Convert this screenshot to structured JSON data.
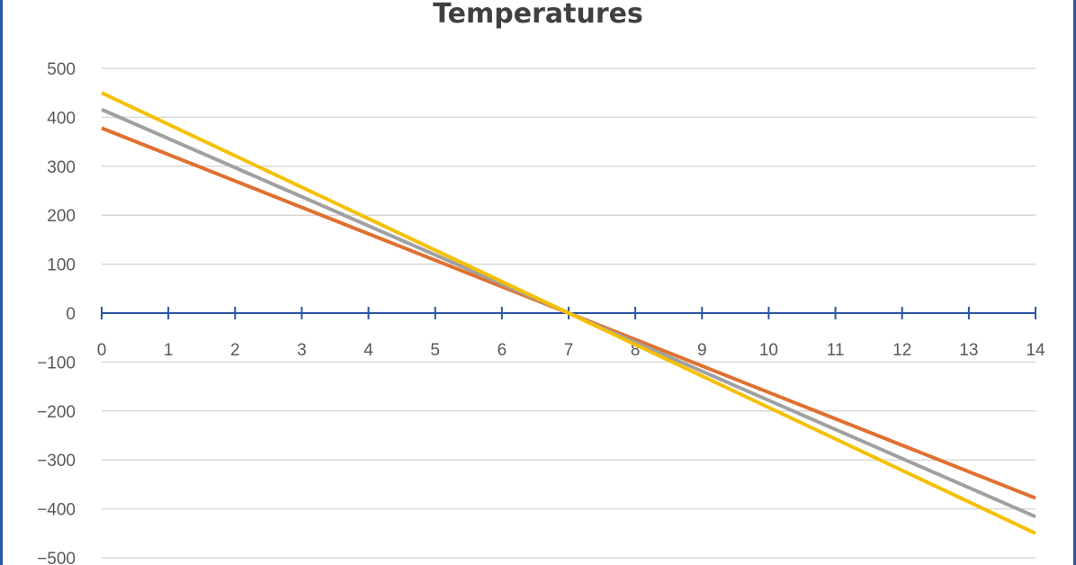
{
  "chart_data": {
    "type": "line",
    "title": "Temperatures",
    "xlabel": "",
    "ylabel": "",
    "x": [
      0,
      14
    ],
    "xlim": [
      0,
      14
    ],
    "ylim": [
      -500,
      500
    ],
    "x_ticks": [
      "0",
      "1",
      "2",
      "3",
      "4",
      "5",
      "6",
      "7",
      "8",
      "9",
      "10",
      "11",
      "12",
      "13",
      "14"
    ],
    "y_ticks": [
      "500",
      "400",
      "300",
      "200",
      "100",
      "0",
      "-100",
      "-200",
      "-300",
      "-400",
      "-500"
    ],
    "grid": true,
    "series": [
      {
        "values": [
          378,
          -378
        ],
        "color": "#e07030"
      },
      {
        "values": [
          416,
          -416
        ],
        "color": "#a0a0a0"
      },
      {
        "values": [
          450,
          -450
        ],
        "color": "#f5c000"
      }
    ],
    "colors": {
      "axis": "#2b56a6",
      "grid": "#d9d9d9",
      "frame": "#2b56a6"
    }
  }
}
